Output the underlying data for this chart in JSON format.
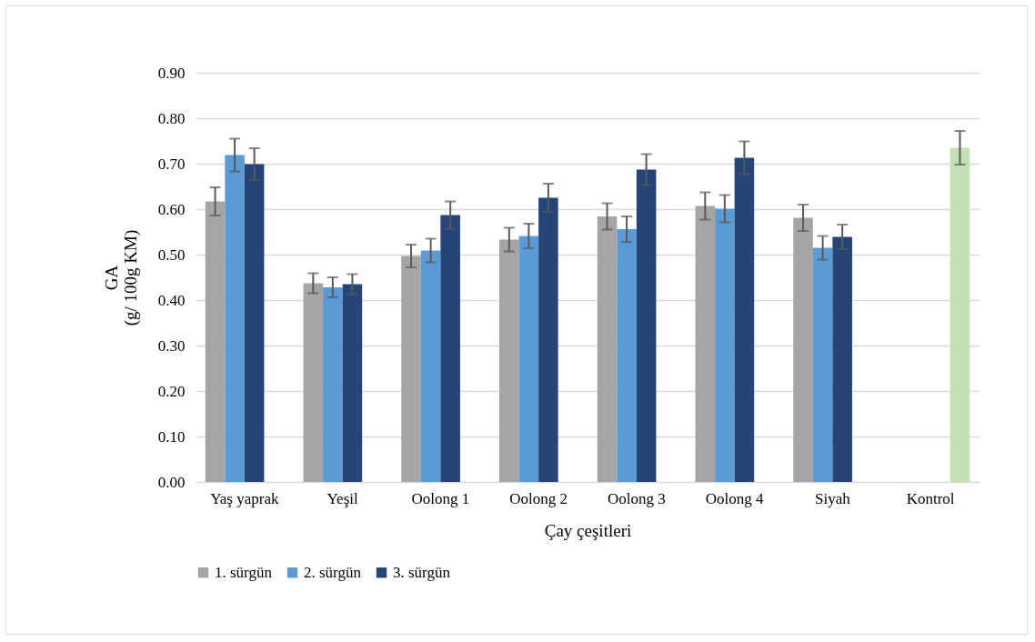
{
  "chart_data": {
    "type": "bar",
    "xlabel": "Çay çeşitleri",
    "ylabel": "GA\n(g/ 100g  KM)",
    "categories": [
      "Yaş yaprak",
      "Yeşil",
      "Oolong 1",
      "Oolong 2",
      "Oolong 3",
      "Oolong 4",
      "Siyah",
      "Kontrol"
    ],
    "series": [
      {
        "name": "1. sürgün",
        "color": "#a5a5a5",
        "values": [
          0.617,
          0.437,
          0.497,
          0.533,
          0.584,
          0.607,
          0.581,
          null
        ],
        "errors": [
          0.031,
          0.022,
          0.025,
          0.026,
          0.029,
          0.03,
          0.029,
          null
        ]
      },
      {
        "name": "2. sürgün",
        "color": "#5b9bd5",
        "values": [
          0.719,
          0.428,
          0.509,
          0.541,
          0.556,
          0.601,
          0.515,
          null
        ],
        "errors": [
          0.036,
          0.022,
          0.026,
          0.027,
          0.028,
          0.03,
          0.026,
          null
        ]
      },
      {
        "name": "3. sürgün",
        "color": "#264478",
        "values": [
          0.699,
          0.435,
          0.587,
          0.625,
          0.687,
          0.713,
          0.539,
          null
        ],
        "errors": [
          0.035,
          0.022,
          0.03,
          0.031,
          0.034,
          0.036,
          0.027,
          null
        ]
      },
      {
        "color": "#c5e0b4",
        "values": [
          null,
          null,
          null,
          null,
          null,
          null,
          null,
          0.735
        ],
        "errors": [
          null,
          null,
          null,
          null,
          null,
          null,
          null,
          0.037
        ]
      }
    ],
    "ylim": [
      0,
      0.9
    ],
    "yticks": [
      {
        "value": 0,
        "label": "0.00"
      },
      {
        "value": 0.1,
        "label": "0.10"
      },
      {
        "value": 0.2,
        "label": "0.20"
      },
      {
        "value": 0.3,
        "label": "0.30"
      },
      {
        "value": 0.4,
        "label": "0.40"
      },
      {
        "value": 0.5,
        "label": "0.50"
      },
      {
        "value": 0.6,
        "label": "0.60"
      },
      {
        "value": 0.7,
        "label": "0.70"
      },
      {
        "value": 0.8,
        "label": "0.80"
      },
      {
        "value": 0.9,
        "label": "0.90"
      }
    ],
    "grid": "y",
    "legend": "bottom"
  }
}
